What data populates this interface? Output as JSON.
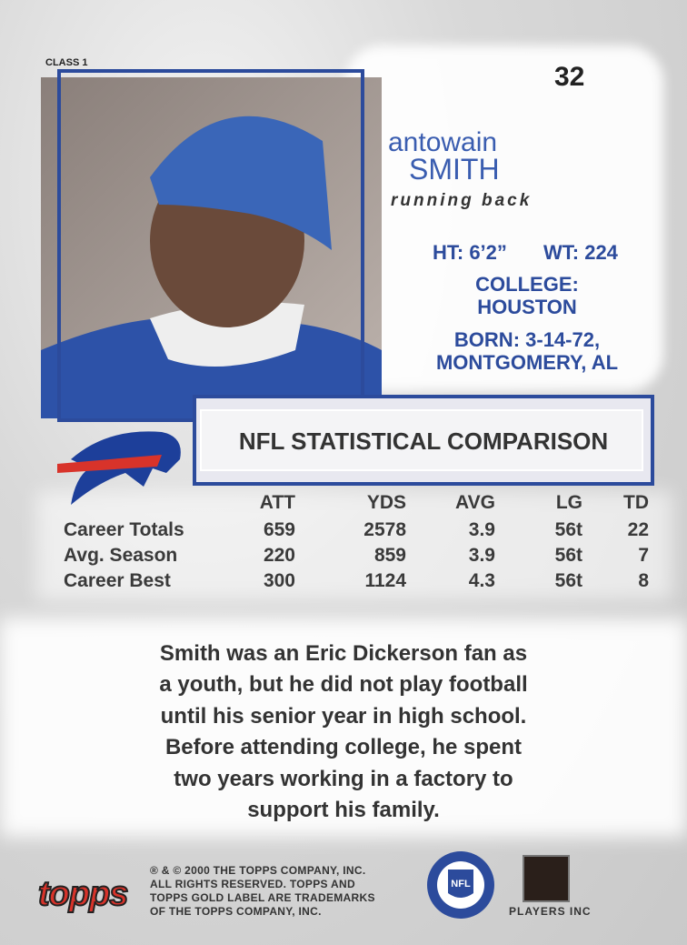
{
  "header": {
    "class": "CLASS 1",
    "number": 32
  },
  "player": {
    "first_name": "antowain",
    "last_name": "SMITH",
    "position": "running back",
    "height": "HT: 6’2”",
    "weight": "WT: 224",
    "college_label": "COLLEGE:",
    "college": "HOUSTON",
    "born": "BORN: 3-14-72,",
    "birthplace": "MONTGOMERY, AL"
  },
  "stats": {
    "title": "NFL STATISTICAL COMPARISON",
    "columns": [
      "ATT",
      "YDS",
      "AVG",
      "LG",
      "TD"
    ],
    "rows": [
      {
        "label": "Career Totals",
        "values": [
          659,
          2578,
          3.9,
          "56t",
          22
        ]
      },
      {
        "label": "Avg. Season",
        "values": [
          220,
          859,
          3.9,
          "56t",
          7
        ]
      },
      {
        "label": "Career Best",
        "values": [
          300,
          1124,
          4.3,
          "56t",
          8
        ]
      }
    ]
  },
  "bio": {
    "lines": [
      "Smith was an Eric Dickerson fan as",
      "a youth, but he did not play football",
      "until his senior year in high school.",
      "Before attending college, he spent",
      "two years working in a factory to",
      "support his family."
    ]
  },
  "footer": {
    "copyright": [
      "® & © 2000 THE TOPPS COMPANY, INC.",
      "ALL RIGHTS RESERVED. TOPPS AND",
      "TOPPS GOLD LABEL ARE TRADEMARKS",
      "OF THE TOPPS COMPANY, INC."
    ],
    "brand": "topps",
    "nfl": "NFL",
    "players": "PLAYERS INC"
  }
}
